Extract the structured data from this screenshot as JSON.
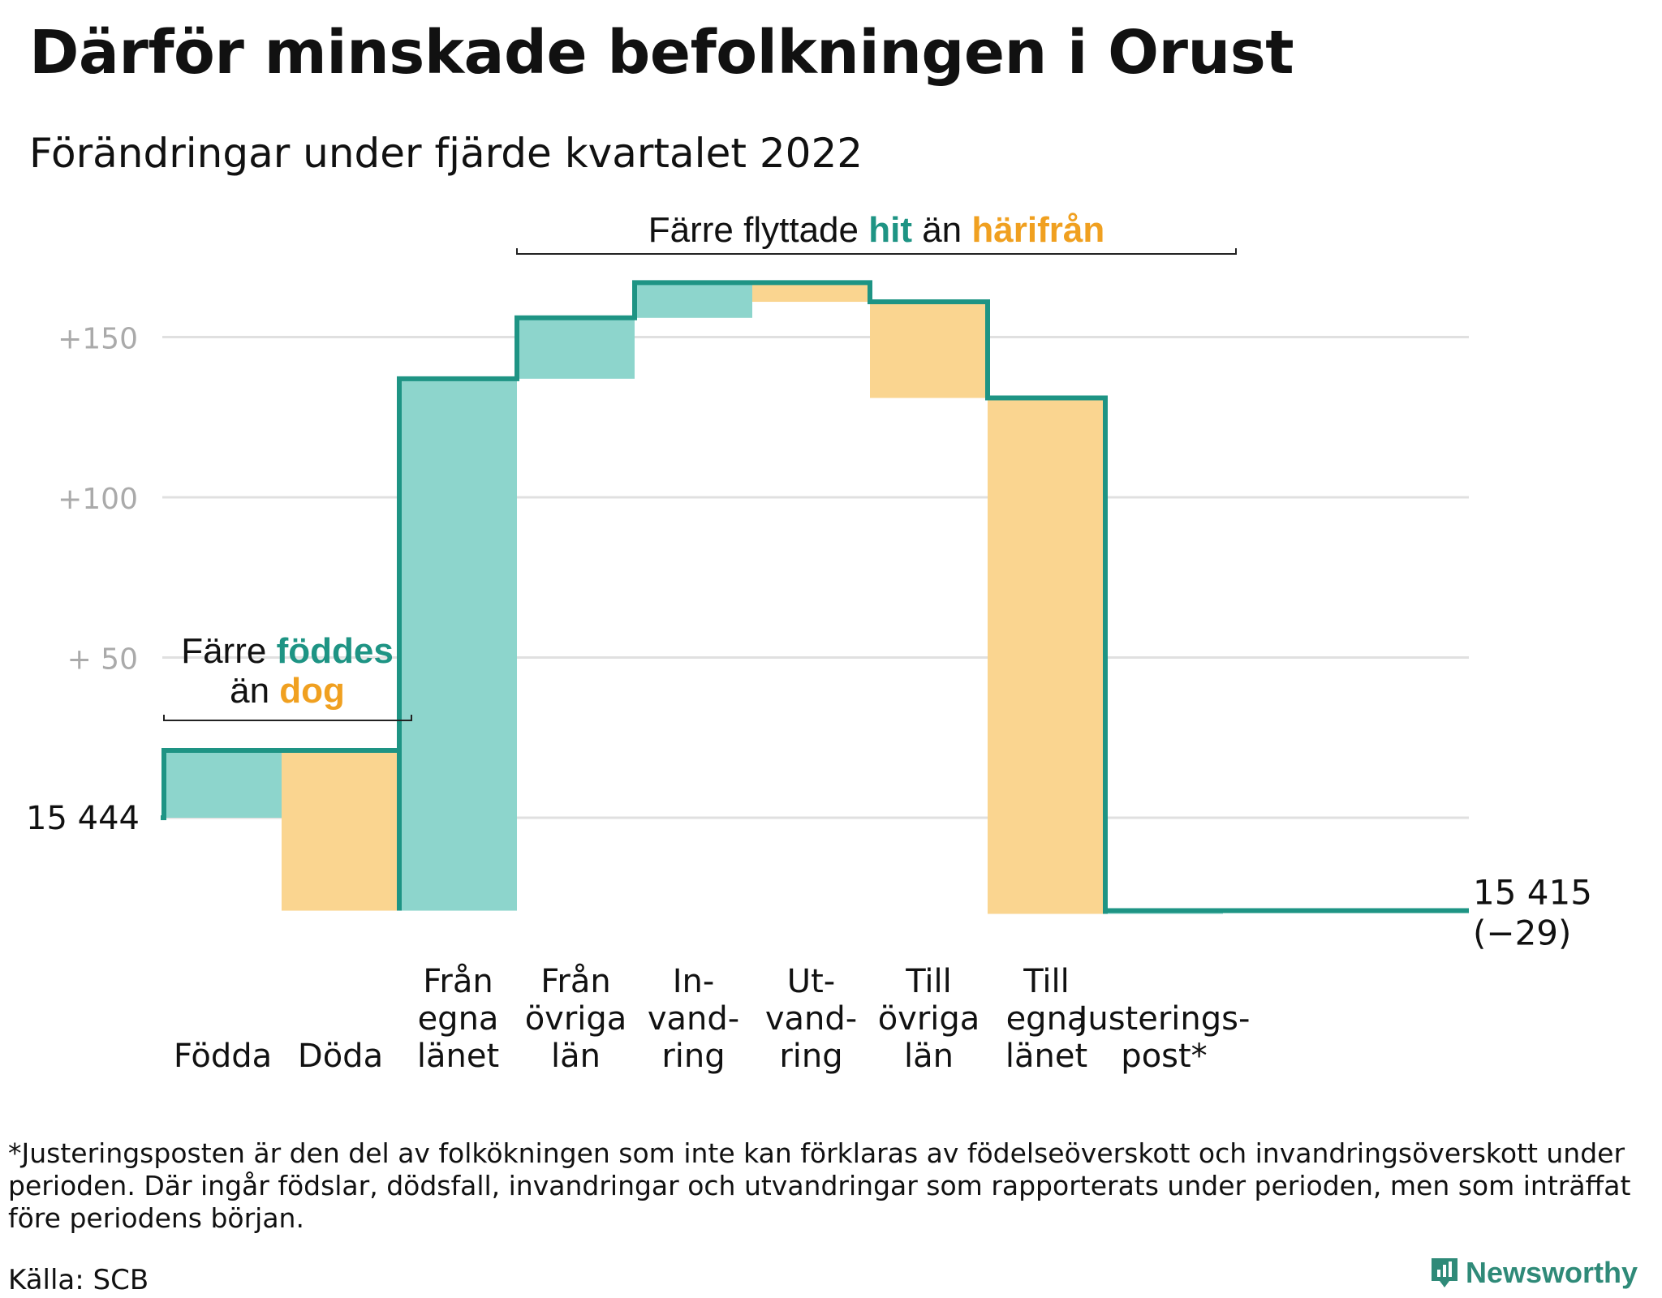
{
  "title": "Därför minskade befolkningen i Orust",
  "subtitle": "Förändringar under fjärde kvartalet 2022",
  "colors": {
    "in": "#8dd5cc",
    "out": "#fad590",
    "line": "#1e9484",
    "accent_in": "#1e9484",
    "accent_out": "#f0a020",
    "grid": "#e0e0e0",
    "tick": "#aaaaaa"
  },
  "brackets": {
    "births": {
      "line1_plain": "Färre ",
      "line1_accent": "föddes",
      "line2_plain": "än ",
      "line2_accent": "dog"
    },
    "moves": {
      "plain1": "Färre flyttade ",
      "accent1": "hit",
      "plain2": " än ",
      "accent2": "härifrån"
    }
  },
  "footnote": "*Justeringsposten är den del av folkökningen som inte kan förklaras av födelseöverskott och invandringsöverskott under perioden. Där ingår födslar, dödsfall, invandringar och utvandringar som rapporterats under perioden, men som inträffat före periodens början.",
  "source": "Källa: SCB",
  "brand": "Newsworthy",
  "chart_data": {
    "type": "waterfall",
    "title": "Därför minskade befolkningen i Orust",
    "subtitle": "Förändringar under fjärde kvartalet 2022",
    "ylim": [
      -35,
      175
    ],
    "y_ticks": [
      {
        "value": 150,
        "label": "+150"
      },
      {
        "value": 100,
        "label": "+100"
      },
      {
        "value": 50,
        "label": "+ 50"
      },
      {
        "value": 0,
        "label": "15 444"
      }
    ],
    "start_value": 15444,
    "end_label": "15 415",
    "end_change_label": "(−29)",
    "steps": [
      {
        "label": [
          "Födda"
        ],
        "direction": "in",
        "from": 0,
        "to": 21
      },
      {
        "label": [
          "Döda"
        ],
        "direction": "out",
        "from": 21,
        "to": -29
      },
      {
        "label": [
          "Från",
          "egna",
          "länet"
        ],
        "direction": "in",
        "from": -29,
        "to": 137
      },
      {
        "label": [
          "Från",
          "övriga",
          "län"
        ],
        "direction": "in",
        "from": 137,
        "to": 156
      },
      {
        "label": [
          "In-",
          "vand-",
          "ring"
        ],
        "direction": "in",
        "from": 156,
        "to": 167
      },
      {
        "label": [
          "Ut-",
          "vand-",
          "ring"
        ],
        "direction": "out",
        "from": 167,
        "to": 161
      },
      {
        "label": [
          "Till",
          "övriga",
          "län"
        ],
        "direction": "out",
        "from": 161,
        "to": 131
      },
      {
        "label": [
          "Till",
          "egna",
          "länet"
        ],
        "direction": "out",
        "from": 131,
        "to": -30
      },
      {
        "label": [
          "Justerings-",
          "post*"
        ],
        "direction": "in",
        "from": -30,
        "to": -29
      }
    ]
  }
}
